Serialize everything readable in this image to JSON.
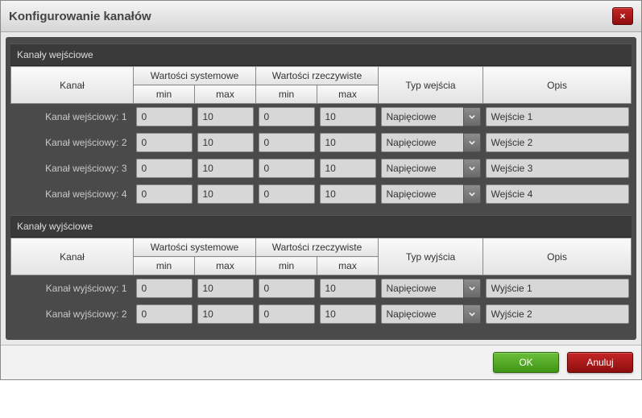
{
  "dialog": {
    "title": "Konfigurowanie kanałów",
    "close_icon": "×"
  },
  "headers": {
    "system_values": "Wartości systemowe",
    "real_values": "Wartości rzeczywiste",
    "channel": "Kanał",
    "min": "min",
    "max": "max",
    "input_type": "Typ wejścia",
    "output_type": "Typ wyjścia",
    "description": "Opis"
  },
  "inputs": {
    "section_title": "Kanały wejściowe",
    "rows": [
      {
        "label": "Kanał wejściowy: 1",
        "sys_min": "0",
        "sys_max": "10",
        "real_min": "0",
        "real_max": "10",
        "type": "Napięciowe",
        "desc": "Wejście 1"
      },
      {
        "label": "Kanał wejściowy: 2",
        "sys_min": "0",
        "sys_max": "10",
        "real_min": "0",
        "real_max": "10",
        "type": "Napięciowe",
        "desc": "Wejście 2"
      },
      {
        "label": "Kanał wejściowy: 3",
        "sys_min": "0",
        "sys_max": "10",
        "real_min": "0",
        "real_max": "10",
        "type": "Napięciowe",
        "desc": "Wejście 3"
      },
      {
        "label": "Kanał wejściowy: 4",
        "sys_min": "0",
        "sys_max": "10",
        "real_min": "0",
        "real_max": "10",
        "type": "Napięciowe",
        "desc": "Wejście 4"
      }
    ]
  },
  "outputs": {
    "section_title": "Kanały wyjściowe",
    "rows": [
      {
        "label": "Kanał wyjściowy: 1",
        "sys_min": "0",
        "sys_max": "10",
        "real_min": "0",
        "real_max": "10",
        "type": "Napięciowe",
        "desc": "Wyjście 1"
      },
      {
        "label": "Kanał wyjściowy: 2",
        "sys_min": "0",
        "sys_max": "10",
        "real_min": "0",
        "real_max": "10",
        "type": "Napięciowe",
        "desc": "Wyjście 2"
      }
    ]
  },
  "buttons": {
    "ok": "OK",
    "cancel": "Anuluj"
  },
  "colors": {
    "header_grad_top": "#f4f4f4",
    "header_grad_bot": "#d6d6d6",
    "panel_bg": "#4a4a4a",
    "section_bg": "#3a3a3a",
    "th_grad_top": "#fafafa",
    "th_grad_bot": "#e3e3e3",
    "input_bg": "#d7d7d7",
    "ok_top": "#6bbf3a",
    "ok_bot": "#3f9616",
    "cancel_top": "#c62626",
    "cancel_bot": "#8e0e0e"
  }
}
